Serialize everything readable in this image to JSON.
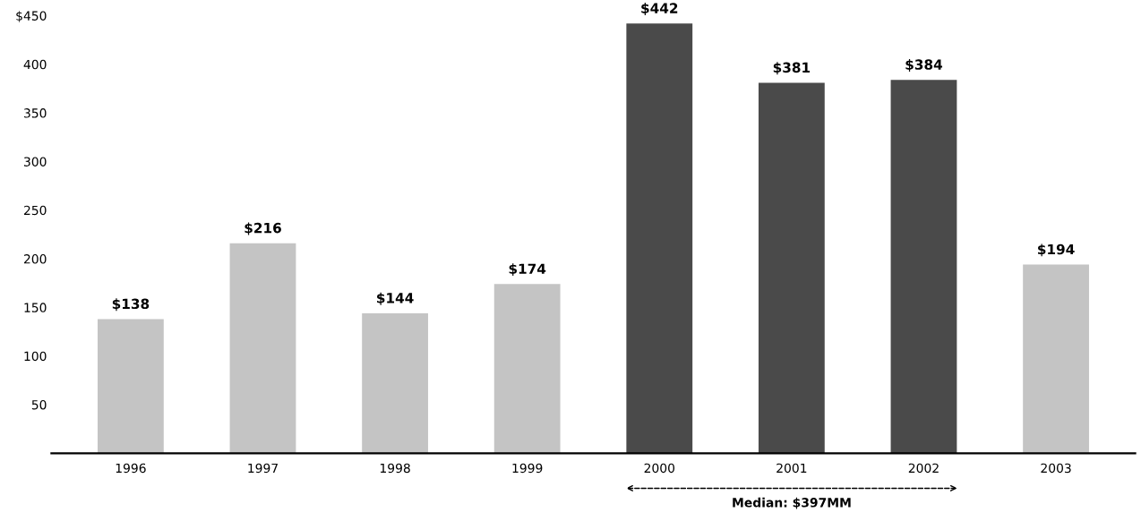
{
  "chart_data": {
    "type": "bar",
    "categories": [
      "1996",
      "1997",
      "1998",
      "1999",
      "2000",
      "2001",
      "2002",
      "2003"
    ],
    "values": [
      138,
      216,
      144,
      174,
      442,
      381,
      384,
      194
    ],
    "colors": [
      "#c4c4c4",
      "#c4c4c4",
      "#c4c4c4",
      "#c4c4c4",
      "#4a4a4a",
      "#4a4a4a",
      "#4a4a4a",
      "#c4c4c4"
    ],
    "value_labels": [
      "$138",
      "$216",
      "$144",
      "$174",
      "$442",
      "$381",
      "$384",
      "$194"
    ],
    "ylim": [
      0,
      450
    ],
    "yticks": [
      50,
      100,
      150,
      200,
      250,
      300,
      350,
      400,
      {
        "value": 450,
        "label": "$450"
      }
    ],
    "annotations": [
      "Median: $397MM"
    ],
    "grid": false,
    "legend": false
  }
}
